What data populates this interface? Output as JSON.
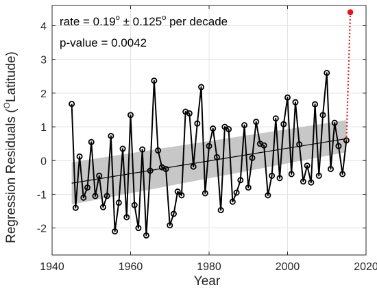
{
  "chart_data": {
    "type": "scatter",
    "xlabel": "Year",
    "ylabel_main": "Regression Residuals (",
    "ylabel_sup": "O",
    "ylabel_tail": "Latitude)",
    "xlim": [
      1940,
      2020
    ],
    "ylim": [
      -2.8,
      4.6
    ],
    "xticks": [
      1940,
      1960,
      1980,
      2000,
      2020
    ],
    "yticks": [
      -2,
      -1,
      0,
      1,
      2,
      3,
      4
    ],
    "grid": true,
    "annotations": {
      "rate_prefix": "rate = 0.19",
      "rate_sup1": "o",
      "rate_pm": " ± 0.125",
      "rate_sup2": "o",
      "rate_suffix": " per decade",
      "pvalue": "p-value = 0.0042"
    },
    "series": [
      {
        "x": [
          1945,
          1946,
          1947,
          1948,
          1949,
          1950,
          1951,
          1952,
          1953,
          1954,
          1955,
          1956,
          1957,
          1958,
          1959,
          1960,
          1961,
          1962,
          1963,
          1964,
          1965,
          1966,
          1967,
          1968,
          1969,
          1970,
          1971,
          1972,
          1973,
          1974,
          1975,
          1976,
          1977,
          1978,
          1979,
          1980,
          1981,
          1982,
          1983,
          1984,
          1985,
          1986,
          1987,
          1988,
          1989,
          1990,
          1991,
          1992,
          1993,
          1994,
          1995,
          1996,
          1997,
          1998,
          1999,
          2000,
          2001,
          2002,
          2003,
          2004,
          2005,
          2006,
          2007,
          2008,
          2009,
          2010,
          2011,
          2012,
          2013,
          2014,
          2015
        ],
        "y": [
          1.68,
          -1.4,
          0.12,
          -1.1,
          -0.8,
          0.55,
          -1.05,
          -0.45,
          -1.38,
          -1.05,
          0.73,
          -2.1,
          -1.25,
          0.35,
          -1.68,
          1.35,
          -1.32,
          -2.0,
          0.33,
          -2.22,
          -0.3,
          2.37,
          0.3,
          -0.2,
          -0.25,
          -1.92,
          -1.58,
          -0.92,
          -1.03,
          1.45,
          1.4,
          -0.18,
          1.1,
          2.18,
          -0.97,
          0.43,
          0.95,
          0.1,
          -1.47,
          1.0,
          0.93,
          -1.22,
          -0.95,
          -0.58,
          1.05,
          -0.8,
          0.08,
          1.15,
          0.5,
          0.45,
          -1.03,
          -0.45,
          1.25,
          -0.52,
          1.08,
          1.87,
          -0.4,
          1.73,
          0.48,
          -0.62,
          -0.15,
          -0.65,
          1.67,
          -0.45,
          1.35,
          2.6,
          -0.25,
          1.12,
          0.43,
          -0.4,
          0.6
        ]
      }
    ],
    "highlight": {
      "x": 2016,
      "y": 4.4,
      "color": "#e8111c"
    },
    "fit": {
      "x": [
        1945,
        2015
      ],
      "y": [
        -0.67,
        0.65
      ]
    },
    "band": {
      "x": [
        1945,
        2015
      ],
      "lower": [
        -1.3,
        0.25
      ],
      "upper": [
        -0.05,
        1.2
      ]
    }
  }
}
